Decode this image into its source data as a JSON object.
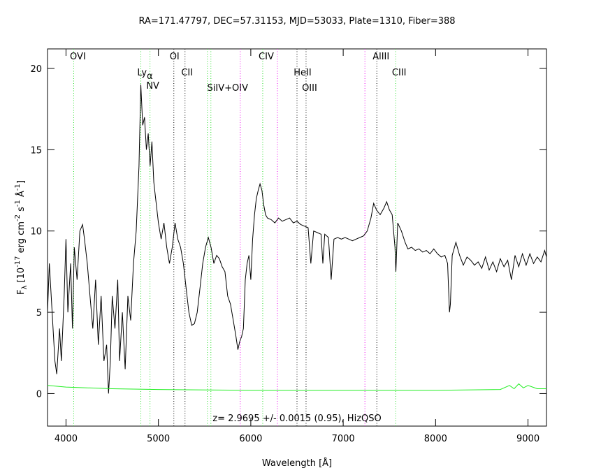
{
  "chart_data": {
    "type": "line",
    "title": "RA=171.47797, DEC=57.31153, MJD=53033, Plate=1310, Fiber=388",
    "xlabel": "Wavelength [Å]",
    "ylabel": [
      "F",
      "λ",
      " [10",
      "-17",
      " erg cm",
      "-2",
      " s",
      "-1",
      " Å",
      "-1",
      "]"
    ],
    "annotation": "z= 2.9695 +/- 0.0015 (0.95), HizQSO",
    "xlim": [
      3800,
      9200
    ],
    "ylim": [
      -2,
      21.2
    ],
    "xticks": [
      4000,
      5000,
      6000,
      7000,
      8000,
      9000
    ],
    "yticks": [
      0,
      5,
      10,
      15,
      20
    ],
    "series": [
      {
        "color": "#000000",
        "x": [
          3800,
          3820,
          3850,
          3880,
          3900,
          3930,
          3950,
          3980,
          4000,
          4020,
          4050,
          4070,
          4090,
          4120,
          4150,
          4180,
          4200,
          4230,
          4260,
          4290,
          4320,
          4350,
          4380,
          4410,
          4440,
          4460,
          4480,
          4500,
          4530,
          4560,
          4580,
          4610,
          4640,
          4670,
          4700,
          4730,
          4760,
          4790,
          4810,
          4830,
          4850,
          4870,
          4890,
          4910,
          4930,
          4950,
          4970,
          5000,
          5030,
          5060,
          5090,
          5120,
          5150,
          5180,
          5210,
          5240,
          5270,
          5300,
          5330,
          5360,
          5390,
          5420,
          5450,
          5480,
          5510,
          5540,
          5570,
          5600,
          5630,
          5660,
          5690,
          5720,
          5750,
          5780,
          5810,
          5840,
          5860,
          5880,
          5900,
          5920,
          5940,
          5960,
          5980,
          6000,
          6020,
          6040,
          6060,
          6080,
          6100,
          6120,
          6140,
          6160,
          6180,
          6220,
          6260,
          6300,
          6340,
          6380,
          6420,
          6460,
          6500,
          6540,
          6580,
          6620,
          6650,
          6680,
          6720,
          6760,
          6780,
          6800,
          6840,
          6870,
          6900,
          6940,
          6980,
          7020,
          7060,
          7100,
          7140,
          7180,
          7220,
          7260,
          7300,
          7330,
          7360,
          7400,
          7440,
          7470,
          7500,
          7530,
          7560,
          7570,
          7590,
          7630,
          7670,
          7700,
          7740,
          7780,
          7820,
          7860,
          7900,
          7940,
          7980,
          8020,
          8060,
          8100,
          8130,
          8150,
          8160,
          8180,
          8220,
          8260,
          8300,
          8340,
          8380,
          8420,
          8460,
          8500,
          8540,
          8580,
          8620,
          8660,
          8700,
          8740,
          8780,
          8820,
          8860,
          8900,
          8940,
          8980,
          9020,
          9060,
          9100,
          9140,
          9180,
          9200
        ],
        "values": [
          5,
          8,
          5,
          2,
          1.2,
          4,
          2,
          6,
          9.5,
          5,
          8,
          4,
          9,
          7,
          10,
          10.4,
          9.5,
          8,
          6,
          4,
          7,
          3,
          6,
          2,
          3,
          0,
          2,
          6,
          4,
          7,
          2,
          5,
          1.5,
          6,
          4.5,
          8,
          10,
          14,
          19,
          16.5,
          17,
          15,
          16,
          14,
          15.5,
          13,
          12,
          10.5,
          9.5,
          10.5,
          9,
          8,
          9,
          10.5,
          9.5,
          9,
          8,
          6.5,
          5,
          4.2,
          4.3,
          5,
          6.5,
          8,
          9,
          9.6,
          9,
          8,
          8.5,
          8.3,
          7.8,
          7.5,
          6,
          5.5,
          4.5,
          3.5,
          2.7,
          3.2,
          3.5,
          4,
          7,
          8,
          8.5,
          7,
          9.5,
          11,
          12,
          12.5,
          12.9,
          12.5,
          11.6,
          11,
          10.8,
          10.7,
          10.5,
          10.8,
          10.6,
          10.7,
          10.8,
          10.5,
          10.6,
          10.4,
          10.3,
          10.2,
          8,
          10,
          9.9,
          9.8,
          8,
          9.8,
          9.6,
          7,
          9.5,
          9.6,
          9.5,
          9.6,
          9.5,
          9.4,
          9.5,
          9.6,
          9.7,
          10,
          10.8,
          11.7,
          11.3,
          11,
          11.4,
          11.8,
          11.3,
          11,
          9,
          7.5,
          10.5,
          10,
          9.3,
          8.9,
          9,
          8.8,
          8.9,
          8.7,
          8.8,
          8.6,
          8.9,
          8.6,
          8.4,
          8.5,
          8,
          5,
          5.5,
          8.5,
          9.3,
          8.5,
          7.9,
          8.4,
          8.2,
          7.9,
          8.1,
          7.7,
          8.4,
          7.6,
          8.1,
          7.5,
          8.3,
          7.8,
          8.2,
          7,
          8.5,
          7.8,
          8.6,
          7.9,
          8.6,
          8,
          8.4,
          8.1,
          8.8,
          8.4
        ]
      },
      {
        "color": "#22ee22",
        "x": [
          3800,
          4000,
          4500,
          5000,
          6000,
          7000,
          8000,
          8700,
          8800,
          8850,
          8900,
          8950,
          9000,
          9100,
          9200
        ],
        "values": [
          0.5,
          0.4,
          0.3,
          0.25,
          0.2,
          0.2,
          0.2,
          0.25,
          0.5,
          0.3,
          0.6,
          0.35,
          0.5,
          0.3,
          0.3
        ]
      }
    ],
    "lines": [
      {
        "x": 4083,
        "color": "#22dd22",
        "label": "OVI"
      },
      {
        "x": 4810,
        "color": "#22dd22",
        "label": "Ly",
        "sub": "α"
      },
      {
        "x": 4909,
        "color": "#22dd22",
        "label": "NV"
      },
      {
        "x": 5167,
        "color": "#000000",
        "label": "OI"
      },
      {
        "x": 5288,
        "color": "#000000",
        "label": "CII"
      },
      {
        "x": 5530,
        "color": "#22dd22",
        "label": "SiIV+OIV"
      },
      {
        "x": 5568,
        "color": "#22dd22"
      },
      {
        "x": 5886,
        "color": "#ee00ee"
      },
      {
        "x": 6129,
        "color": "#22dd22",
        "label": "CIV"
      },
      {
        "x": 6288,
        "color": "#ee00ee"
      },
      {
        "x": 6500,
        "color": "#000000",
        "label": "HeII"
      },
      {
        "x": 6598,
        "color": "#000000",
        "label": "OIII"
      },
      {
        "x": 7235,
        "color": "#ee00ee"
      },
      {
        "x": 7364,
        "color": "#000000",
        "label": "AlIII"
      },
      {
        "x": 7568,
        "color": "#22dd22",
        "label": "CIII"
      }
    ]
  }
}
